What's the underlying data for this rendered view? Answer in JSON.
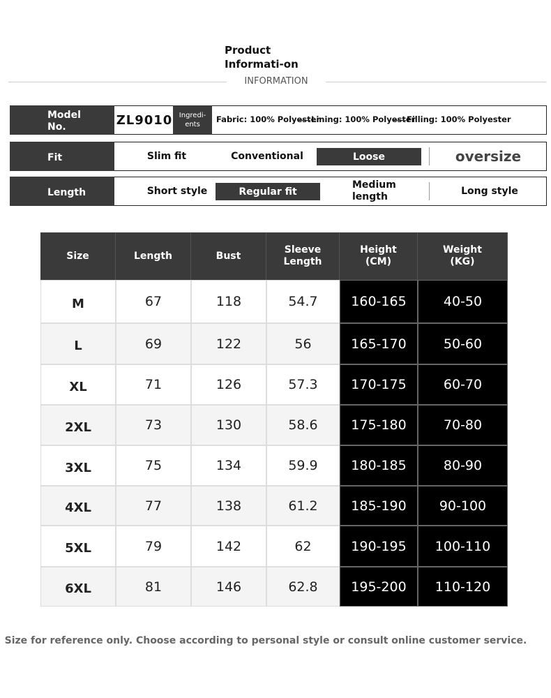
{
  "header": {
    "title": "Product Informati-on",
    "subtitle": "INFORMATION"
  },
  "info": {
    "model": {
      "label": "Model No.",
      "value": "ZL9010"
    },
    "ingredients": {
      "label": "Ingredi-ents",
      "items": [
        "Fabric: 100% Polyester",
        "Lining: 100% Polyester",
        "Filling: 100% Polyester"
      ]
    },
    "fit": {
      "label": "Fit",
      "options": [
        "Slim fit",
        "Conventional",
        "Loose",
        "oversize"
      ],
      "selected": 2
    },
    "length": {
      "label": "Length",
      "options": [
        "Short style",
        "Regular fit",
        "Medium length",
        "Long style"
      ],
      "selected": 1
    }
  },
  "table": {
    "columns": [
      "Size",
      "Length",
      "Bust",
      "Sleeve Length",
      "Height (CM)",
      "Weight (KG)"
    ],
    "rows": [
      [
        "M",
        67,
        118,
        54.7,
        "160-165",
        "40-50"
      ],
      [
        "L",
        69,
        122,
        56,
        "165-170",
        "50-60"
      ],
      [
        "XL",
        71,
        126,
        57.3,
        "170-175",
        "60-70"
      ],
      [
        "2XL",
        73,
        130,
        58.6,
        "175-180",
        "70-80"
      ],
      [
        "3XL",
        75,
        134,
        59.9,
        "180-185",
        "80-90"
      ],
      [
        "4XL",
        77,
        138,
        61.2,
        "185-190",
        "90-100"
      ],
      [
        "5XL",
        79,
        142,
        62,
        "190-195",
        "100-110"
      ],
      [
        "6XL",
        81,
        146,
        62.8,
        "195-200",
        "110-120"
      ]
    ]
  },
  "footer": {
    "note": "Size for reference only. Choose according to personal style or consult online customer service."
  }
}
